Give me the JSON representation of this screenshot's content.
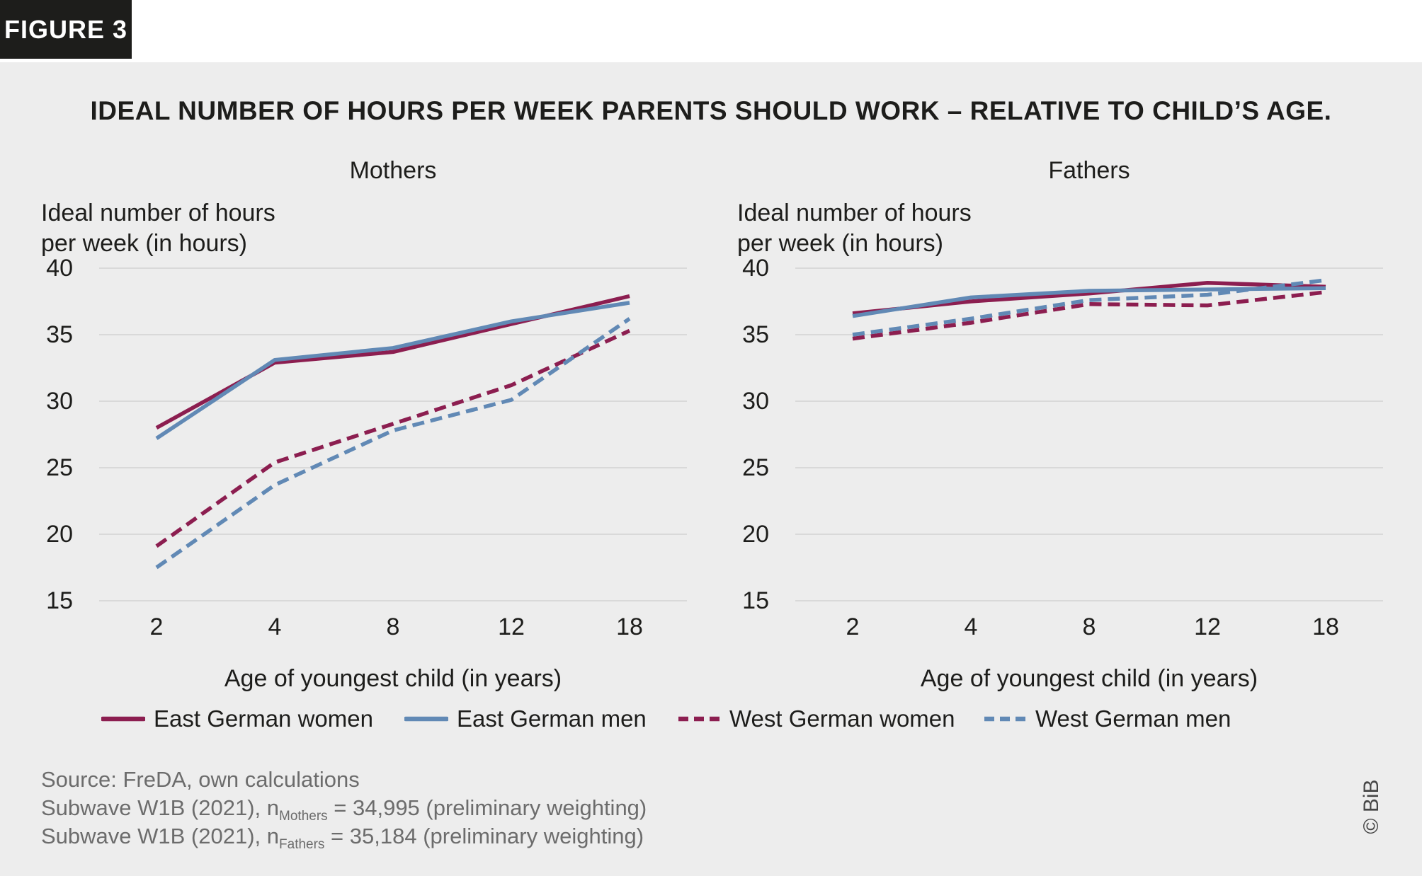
{
  "figure": {
    "badge": "FIGURE 3"
  },
  "title": "IDEAL NUMBER OF HOURS PER WEEK PARENTS SHOULD WORK – RELATIVE TO CHILD’S AGE.",
  "chart_data": {
    "type": "line",
    "background": "#ededed",
    "grid_color": "#d9d9d9",
    "x_categories": [
      "2",
      "4",
      "8",
      "12",
      "18"
    ],
    "xlabel": "Age of youngest child (in years)",
    "ylabel_line1": "Ideal number of hours",
    "ylabel_line2": "per week (in hours)",
    "yticks": [
      40,
      35,
      30,
      25,
      20,
      15
    ],
    "ylim": [
      15,
      40
    ],
    "legend_position": "bottom",
    "panels": [
      {
        "title": "Mothers",
        "series": [
          {
            "name": "East German women",
            "values": [
              28.0,
              32.9,
              33.7,
              35.8,
              37.9
            ]
          },
          {
            "name": "East German men",
            "values": [
              27.2,
              33.1,
              34.0,
              36.0,
              37.4
            ]
          },
          {
            "name": "West German women",
            "values": [
              19.1,
              25.4,
              28.3,
              31.2,
              35.3
            ]
          },
          {
            "name": "West German men",
            "values": [
              17.5,
              23.7,
              27.8,
              30.1,
              36.2
            ]
          }
        ]
      },
      {
        "title": "Fathers",
        "series": [
          {
            "name": "East German women",
            "values": [
              36.6,
              37.5,
              38.1,
              38.9,
              38.6
            ]
          },
          {
            "name": "East German men",
            "values": [
              36.4,
              37.8,
              38.3,
              38.4,
              38.5
            ]
          },
          {
            "name": "West German women",
            "values": [
              34.7,
              35.9,
              37.3,
              37.2,
              38.2
            ]
          },
          {
            "name": "West German men",
            "values": [
              35.0,
              36.2,
              37.6,
              38.0,
              39.1
            ]
          }
        ]
      }
    ]
  },
  "legend": {
    "items": [
      {
        "label": "East German women",
        "color": "#8c1e50",
        "dashed": false
      },
      {
        "label": "East German men",
        "color": "#6189b5",
        "dashed": false
      },
      {
        "label": "West German women",
        "color": "#8c1e50",
        "dashed": true
      },
      {
        "label": "West German men",
        "color": "#6189b5",
        "dashed": true
      }
    ],
    "positions_x": [
      143,
      571,
      956,
      1388
    ]
  },
  "footer": {
    "line1": "Source: FreDA, own calculations",
    "line2": {
      "pre": "Subwave W1B (2021), n",
      "sub": "Mothers",
      "post": " = 34,995 (preliminary weighting)"
    },
    "line3": {
      "pre": "Subwave W1B (2021), n",
      "sub": "Fathers",
      "post": " = 35,184 (preliminary weighting)"
    }
  },
  "copyright": "© BiB"
}
